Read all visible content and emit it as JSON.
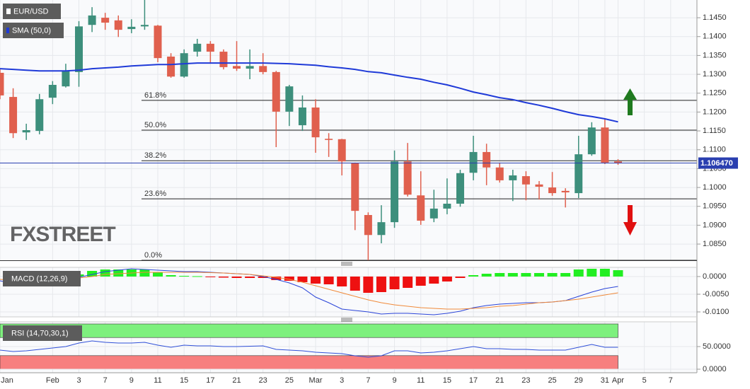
{
  "chart_data": [
    {
      "type": "candlestick",
      "title": "EUR/USD",
      "watermark": "FXSTREET",
      "up_color": "#3d8f7c",
      "down_color": "#e0604e",
      "open": [
        1.1304,
        1.124,
        1.1146,
        1.115,
        1.1238,
        1.1268,
        1.1306,
        1.1431,
        1.145,
        1.1443,
        1.142,
        1.1427,
        1.1429,
        1.1347,
        1.1294,
        1.136,
        1.1381,
        1.136,
        1.1322,
        1.1315,
        1.1322,
        1.1306,
        1.1201,
        1.1165,
        1.1212,
        1.1129,
        1.1128,
        1.1064,
        1.0927,
        1.0874,
        1.0908,
        1.1069,
        1.0979,
        1.0918,
        1.0944,
        1.0957,
        1.1039,
        1.1094,
        1.1053,
        1.1019,
        1.103,
        1.1008,
        1.1,
        1.0991,
        1.0985,
        1.1088,
        1.1159,
        1.1069
      ],
      "high": [
        1.1313,
        1.1263,
        1.1169,
        1.1248,
        1.1282,
        1.1328,
        1.1441,
        1.1478,
        1.1463,
        1.1456,
        1.1446,
        1.1497,
        1.1431,
        1.1356,
        1.1366,
        1.1394,
        1.1388,
        1.1366,
        1.1388,
        1.1366,
        1.1356,
        1.1309,
        1.1272,
        1.1244,
        1.1234,
        1.1144,
        1.1129,
        1.1066,
        1.0934,
        1.0953,
        1.1098,
        1.1118,
        1.1043,
        1.0994,
        1.1024,
        1.1047,
        1.1137,
        1.1116,
        1.1066,
        1.1047,
        1.1043,
        1.1017,
        1.1041,
        1.0998,
        1.1137,
        1.1173,
        1.1182,
        1.1075
      ],
      "low": [
        1.1234,
        1.1131,
        1.1126,
        1.1141,
        1.1221,
        1.1265,
        1.1267,
        1.1412,
        1.1418,
        1.1399,
        1.1409,
        1.1418,
        1.1332,
        1.1291,
        1.1291,
        1.1347,
        1.1328,
        1.1313,
        1.1309,
        1.1287,
        1.13,
        1.1107,
        1.1163,
        1.115,
        1.1092,
        1.1081,
        1.1032,
        1.0887,
        1.0807,
        1.0852,
        1.0893,
        1.0976,
        1.0901,
        1.0908,
        1.0929,
        1.0949,
        1.1019,
        1.1006,
        1.1013,
        1.0964,
        1.0966,
        1.0968,
        1.0978,
        1.0947,
        1.0972,
        1.1084,
        1.1062,
        1.106
      ],
      "close": [
        1.1244,
        1.1144,
        1.1152,
        1.1234,
        1.1272,
        1.1309,
        1.1427,
        1.1456,
        1.1437,
        1.1418,
        1.1426,
        1.1431,
        1.1343,
        1.1294,
        1.1356,
        1.1381,
        1.136,
        1.1319,
        1.1315,
        1.1322,
        1.1306,
        1.1201,
        1.1268,
        1.1212,
        1.1133,
        1.1126,
        1.1069,
        1.0938,
        1.0874,
        1.0908,
        1.1069,
        1.0981,
        1.0912,
        1.0944,
        1.0957,
        1.1038,
        1.1094,
        1.1053,
        1.1019,
        1.1032,
        1.1008,
        1.1002,
        1.0985,
        1.0987,
        1.1088,
        1.1159,
        1.1066,
        1.1064
      ],
      "series": [
        {
          "name": "SMA (50,0)",
          "color": "#1f3ad8",
          "values": [
            1.1315,
            1.1313,
            1.1311,
            1.1309,
            1.1309,
            1.1309,
            1.1311,
            1.1315,
            1.1317,
            1.1319,
            1.1322,
            1.1324,
            1.1326,
            1.1326,
            1.1328,
            1.133,
            1.133,
            1.133,
            1.133,
            1.133,
            1.133,
            1.1329,
            1.1328,
            1.1326,
            1.1324,
            1.132,
            1.1317,
            1.1313,
            1.1307,
            1.1304,
            1.1298,
            1.1292,
            1.1287,
            1.1279,
            1.1272,
            1.1263,
            1.1253,
            1.1246,
            1.1238,
            1.1233,
            1.1225,
            1.1218,
            1.121,
            1.1201,
            1.1193,
            1.1188,
            1.1182,
            1.1174
          ]
        }
      ],
      "levels": [
        {
          "label": "61.8%",
          "value": 1.1231
        },
        {
          "label": "50.0%",
          "value": 1.1152
        },
        {
          "label": "38.2%",
          "value": 1.1071
        },
        {
          "label": "23.6%",
          "value": 1.097
        },
        {
          "label": "0.0%",
          "value": 1.0807
        }
      ],
      "last_price": {
        "value": 1.10647,
        "label": "1.106470"
      },
      "ylim": [
        1.0807,
        1.1497
      ],
      "yticks": [
        {
          "value": 1.145,
          "label": "1.1450"
        },
        {
          "value": 1.14,
          "label": "1.1400"
        },
        {
          "value": 1.135,
          "label": "1.1350"
        },
        {
          "value": 1.13,
          "label": "1.1300"
        },
        {
          "value": 1.125,
          "label": "1.1250"
        },
        {
          "value": 1.12,
          "label": "1.1200"
        },
        {
          "value": 1.115,
          "label": "1.1150"
        },
        {
          "value": 1.11,
          "label": "1.1100"
        },
        {
          "value": 1.105,
          "label": "1.1050"
        },
        {
          "value": 1.1,
          "label": "1.1000"
        },
        {
          "value": 1.095,
          "label": "1.0950"
        },
        {
          "value": 1.09,
          "label": "1.0900"
        },
        {
          "value": 1.085,
          "label": "1.0850"
        }
      ],
      "xlim": [
        0,
        53
      ],
      "xticks": [
        {
          "value": 0,
          "label": "Jan"
        },
        {
          "value": 4,
          "label": "Feb"
        },
        {
          "value": 6,
          "label": "3"
        },
        {
          "value": 8,
          "label": "7"
        },
        {
          "value": 10,
          "label": "9"
        },
        {
          "value": 12,
          "label": "11"
        },
        {
          "value": 14,
          "label": "15"
        },
        {
          "value": 16,
          "label": "17"
        },
        {
          "value": 18,
          "label": "21"
        },
        {
          "value": 20,
          "label": "23"
        },
        {
          "value": 22,
          "label": "25"
        },
        {
          "value": 24,
          "label": "Mar"
        },
        {
          "value": 26,
          "label": "3"
        },
        {
          "value": 28,
          "label": "7"
        },
        {
          "value": 30,
          "label": "9"
        },
        {
          "value": 32,
          "label": "11"
        },
        {
          "value": 34,
          "label": "15"
        },
        {
          "value": 36,
          "label": "17"
        },
        {
          "value": 38,
          "label": "21"
        },
        {
          "value": 40,
          "label": "23"
        },
        {
          "value": 42,
          "label": "25"
        },
        {
          "value": 44,
          "label": "29"
        },
        {
          "value": 46,
          "label": "31"
        },
        {
          "value": 47,
          "label": "Apr"
        },
        {
          "value": 49,
          "label": "5"
        },
        {
          "value": 51,
          "label": "7"
        }
      ]
    },
    {
      "type": "macd",
      "title": "MACD (12,26,9)",
      "histogram": {
        "up_color": "#22ee22",
        "down_color": "#ee1111",
        "values": [
          null,
          null,
          null,
          null,
          null,
          null,
          0.0006,
          0.0016,
          0.002,
          0.002,
          0.002,
          0.002,
          0.0012,
          0.0004,
          0.0002,
          0.0001,
          -0.0001,
          -0.0003,
          -0.0004,
          -0.0004,
          -0.0004,
          -0.001,
          -0.0012,
          -0.0016,
          -0.002,
          -0.0022,
          -0.0028,
          -0.004,
          -0.0046,
          -0.0044,
          -0.0036,
          -0.0032,
          -0.0026,
          -0.002,
          -0.0014,
          -0.0004,
          0.0004,
          0.0008,
          0.001,
          0.001,
          0.001,
          0.001,
          0.001,
          0.001,
          0.002,
          0.0022,
          0.0022,
          0.0018
        ]
      },
      "series": [
        {
          "color": "#2a44d8",
          "values": [
            -0.0012,
            -0.002,
            -0.0026,
            -0.0024,
            -0.0018,
            -0.001,
            -0.0002,
            0.0006,
            0.0014,
            0.0018,
            0.0022,
            0.002,
            0.0018,
            0.0016,
            0.0014,
            0.0014,
            0.0012,
            0.001,
            0.0008,
            0.0006,
            0.0,
            -0.0008,
            -0.0018,
            -0.0032,
            -0.0058,
            -0.0074,
            -0.0092,
            -0.0096,
            -0.01,
            -0.0106,
            -0.0104,
            -0.0104,
            -0.0106,
            -0.0108,
            -0.0104,
            -0.0098,
            -0.0088,
            -0.0082,
            -0.0078,
            -0.0076,
            -0.0074,
            -0.0074,
            -0.0072,
            -0.0068,
            -0.0056,
            -0.0044,
            -0.0034,
            -0.0028
          ]
        },
        {
          "color": "#f08a3a",
          "values": [
            -0.0008,
            -0.001,
            -0.0012,
            -0.0014,
            -0.0012,
            -0.0008,
            -0.0004,
            0.0,
            0.0006,
            0.0008,
            0.001,
            0.0012,
            0.0012,
            0.0012,
            0.0012,
            0.0012,
            0.0011,
            0.001,
            0.0008,
            0.0006,
            0.0002,
            -0.0002,
            -0.0008,
            -0.0016,
            -0.0026,
            -0.0036,
            -0.0046,
            -0.0056,
            -0.0066,
            -0.0074,
            -0.008,
            -0.0084,
            -0.0088,
            -0.009,
            -0.0092,
            -0.0092,
            -0.009,
            -0.0088,
            -0.0084,
            -0.0082,
            -0.0078,
            -0.0074,
            -0.0072,
            -0.0068,
            -0.0064,
            -0.0058,
            -0.0052,
            -0.0046
          ]
        }
      ],
      "ylim": [
        -0.0114,
        0.0026
      ],
      "yticks": [
        {
          "value": 0,
          "label": "0.0000"
        },
        {
          "value": -0.005,
          "label": "-0.0050"
        },
        {
          "value": -0.01,
          "label": "-0.0100"
        }
      ]
    },
    {
      "type": "rsi",
      "title": "RSI (14,70,30,1)",
      "bands": [
        {
          "range": [
            70,
            100
          ],
          "color": "#7ef07e"
        },
        {
          "range": [
            0,
            30
          ],
          "color": "#f77f7f"
        }
      ],
      "series": [
        {
          "color": "#3050d8",
          "values": [
            42.2,
            39.1,
            40.6,
            43.8,
            46.9,
            50.0,
            57.8,
            62.5,
            59.4,
            57.8,
            57.8,
            59.4,
            53.1,
            48.4,
            53.1,
            51.6,
            51.6,
            50.0,
            50.0,
            50.8,
            51.6,
            43.8,
            42.2,
            40.6,
            37.5,
            35.9,
            34.4,
            29.7,
            26.6,
            29.7,
            40.6,
            40.6,
            35.9,
            37.5,
            40.6,
            45.3,
            50.0,
            45.3,
            45.3,
            43.8,
            43.8,
            42.2,
            42.2,
            42.2,
            48.4,
            54.7,
            48.4,
            48.4
          ]
        }
      ],
      "ylim": [
        -7.8,
        104.7
      ],
      "yticks": [
        {
          "value": 50,
          "label": "50.0000"
        },
        {
          "value": 0,
          "label": "0.0000"
        }
      ]
    }
  ]
}
